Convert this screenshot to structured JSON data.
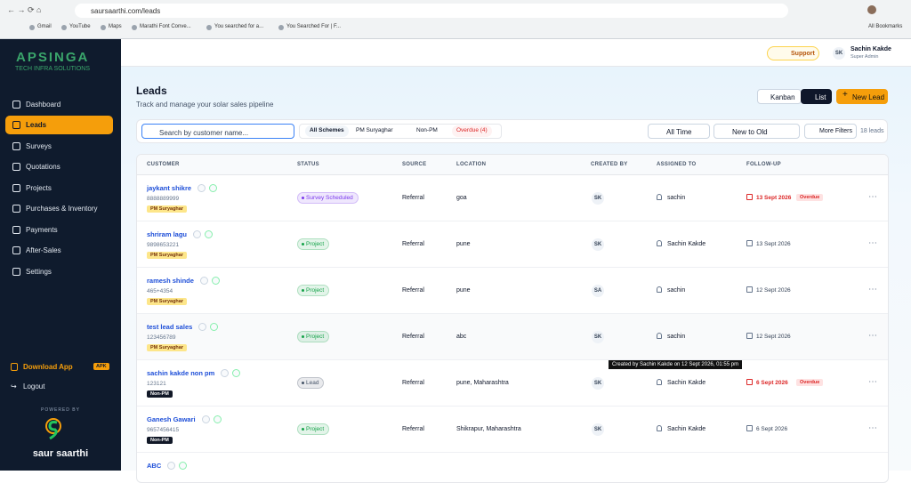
{
  "browser": {
    "url": "saursaarthi.com/leads",
    "bookmarks": [
      "Gmail",
      "YouTube",
      "Maps",
      "Marathi Font Conve...",
      "You searched for a...",
      "You Searched For | F..."
    ],
    "all_bookmarks": "All Bookmarks"
  },
  "sidebar": {
    "brand": "APSINGA",
    "tagline": "TECH INFRA SOLUTIONS",
    "nav": [
      "Dashboard",
      "Leads",
      "Surveys",
      "Quotations",
      "Projects",
      "Purchases & Inventory",
      "Payments",
      "After-Sales",
      "Settings"
    ],
    "download": "Download App",
    "apk": "APK",
    "logout": "Logout",
    "powered_by": "POWERED BY",
    "product": "saur saarthi"
  },
  "topbar": {
    "support": "Support",
    "initials": "SK",
    "user": "Sachin Kakde",
    "role": "Super Admin"
  },
  "header": {
    "title": "Leads",
    "subtitle": "Track and manage your solar sales pipeline",
    "kanban": "Kanban",
    "list": "List",
    "new_lead": "New Lead"
  },
  "filters": {
    "search_placeholder": "Search by customer name...",
    "schemes": [
      "All Schemes",
      "PM Suryaghar",
      "Non-PM",
      "Overdue (4)"
    ],
    "period": "All Time",
    "sort": "New to Old",
    "more": "More Filters",
    "count": "18 leads"
  },
  "table": {
    "columns": [
      "CUSTOMER",
      "STATUS",
      "SOURCE",
      "LOCATION",
      "CREATED BY",
      "ASSIGNED TO",
      "FOLLOW-UP"
    ],
    "rows": [
      {
        "name": "jaykant shikre",
        "phone": "8888889999",
        "scheme": "PM Suryaghar",
        "scheme_color": "#fde68a",
        "status": "Survey Scheduled",
        "status_color": "#7c3aed",
        "source": "Referral",
        "location": "goa",
        "created_by": "SK",
        "assigned_to": "sachin",
        "follow_up": "13 Sept 2026",
        "overdue": "Overdue"
      },
      {
        "name": "shriram lagu",
        "phone": "9898653221",
        "scheme": "PM Suryaghar",
        "scheme_color": "#fde68a",
        "status": "Project",
        "status_color": "#16a34a",
        "source": "Referral",
        "location": "pune",
        "created_by": "SK",
        "assigned_to": "Sachin Kakde",
        "follow_up": "13 Sept 2026"
      },
      {
        "name": "ramesh shinde",
        "phone": "465+4354",
        "scheme": "PM Suryaghar",
        "scheme_color": "#fde68a",
        "status": "Project",
        "status_color": "#16a34a",
        "source": "Referral",
        "location": "pune",
        "created_by": "SA",
        "assigned_to": "sachin",
        "follow_up": "12 Sept 2026"
      },
      {
        "name": "test lead sales",
        "phone": "123456789",
        "scheme": "PM Suryaghar",
        "scheme_color": "#fde68a",
        "status": "Project",
        "status_color": "#16a34a",
        "source": "Referral",
        "location": "abc",
        "created_by": "SK",
        "assigned_to": "sachin",
        "follow_up": "12 Sept 2026"
      },
      {
        "name": "sachin kakde non pm",
        "phone": "123121",
        "scheme": "Non-PM",
        "scheme_color": "#111827",
        "status": "Lead",
        "status_color": "#475569",
        "source": "Referral",
        "location": "pune, Maharashtra",
        "created_by": "SK",
        "assigned_to": "Sachin Kakde",
        "follow_up": "6 Sept 2026",
        "overdue": "Overdue"
      },
      {
        "name": "Ganesh Gawari",
        "phone": "9657456415",
        "scheme": "Non-PM",
        "scheme_color": "#111827",
        "status": "Project",
        "status_color": "#16a34a",
        "source": "Referral",
        "location": "Shikrapur, Maharashtra",
        "created_by": "SK",
        "assigned_to": "Sachin Kakde",
        "follow_up": "6 Sept 2026"
      },
      {
        "name": "ABC"
      }
    ]
  },
  "tooltip": "Created by Sachin Kakde on 12 Sept 2026, 01:55 pm"
}
